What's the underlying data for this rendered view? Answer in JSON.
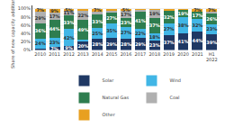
{
  "chart_data": {
    "type": "bar",
    "stacked": true,
    "ylabel": "Share of new capacity additions (%)",
    "categories": [
      "2010",
      "2011",
      "2012",
      "2013",
      "2014",
      "2015",
      "2016",
      "2017",
      "2018",
      "2019",
      "2020",
      "2021",
      "H1\n2022"
    ],
    "series": [
      {
        "name": "Solar",
        "color": "#1f3864",
        "values": [
          4,
          7,
          9,
          20,
          28,
          29,
          28,
          29,
          23,
          37,
          41,
          44,
          39
        ],
        "value_labels": [
          null,
          "7%",
          "9%",
          "20%",
          "28%",
          "29%",
          "28%",
          "29%",
          "23%",
          "37%",
          "41%",
          "44%",
          "39%"
        ]
      },
      {
        "name": "Wind",
        "color": "#41b6e6",
        "values": [
          24,
          23,
          42,
          5,
          25,
          35,
          27,
          22,
          18,
          27,
          38,
          32,
          23
        ],
        "value_labels": [
          "24%",
          "23%",
          "42%",
          null,
          "25%",
          "35%",
          "27%",
          "22%",
          "18%",
          "27%",
          "38%",
          "32%",
          "23%"
        ]
      },
      {
        "name": "Natural Gas",
        "color": "#2e7d4f",
        "values": [
          36,
          44,
          33,
          49,
          33,
          27,
          23,
          41,
          37,
          32,
          19,
          17,
          26
        ],
        "value_labels": [
          "36%",
          "44%",
          "33%",
          "49%",
          "33%",
          "27%",
          "23%",
          "41%",
          "37%",
          "32%",
          "19%",
          "17%",
          "26%"
        ]
      },
      {
        "name": "Coal",
        "color": "#b0b0b0",
        "values": [
          29,
          17,
          11,
          22,
          7,
          5,
          17,
          5,
          19,
          0,
          0,
          0,
          5
        ],
        "value_labels": [
          "29%",
          "17%",
          "11%",
          "22%",
          null,
          null,
          "17%",
          null,
          "19%",
          null,
          null,
          null,
          null
        ]
      },
      {
        "name": "Other",
        "color": "#e8a020",
        "values": [
          7,
          9,
          5,
          4,
          7,
          4,
          5,
          3,
          3,
          4,
          2,
          7,
          7
        ],
        "value_labels": [
          "7%",
          "9%",
          "5%",
          null,
          "7%",
          null,
          "5%",
          null,
          null,
          null,
          null,
          "7%",
          "7%"
        ]
      }
    ],
    "ylim": [
      0,
      108
    ],
    "yticks": [
      {
        "value": 0,
        "label": "0%"
      },
      {
        "value": 20,
        "label": "20%"
      },
      {
        "value": 40,
        "label": "40%"
      },
      {
        "value": 60,
        "label": "60%"
      },
      {
        "value": 80,
        "label": "80%"
      },
      {
        "value": 100,
        "label": "100%"
      }
    ],
    "grid": true,
    "legend": "bottom"
  }
}
